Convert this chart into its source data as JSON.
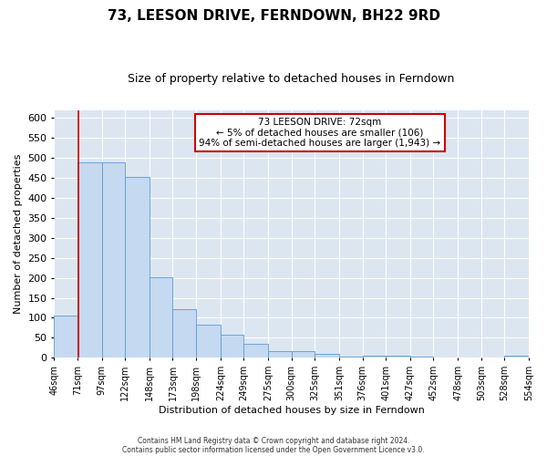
{
  "title": "73, LEESON DRIVE, FERNDOWN, BH22 9RD",
  "subtitle": "Size of property relative to detached houses in Ferndown",
  "xlabel": "Distribution of detached houses by size in Ferndown",
  "ylabel": "Number of detached properties",
  "footnote1": "Contains HM Land Registry data © Crown copyright and database right 2024.",
  "footnote2": "Contains public sector information licensed under the Open Government Licence v3.0.",
  "bin_edges": [
    46,
    71,
    97,
    122,
    148,
    173,
    198,
    224,
    249,
    275,
    300,
    325,
    351,
    376,
    401,
    427,
    452,
    478,
    503,
    528,
    554
  ],
  "bin_labels": [
    "46sqm",
    "71sqm",
    "97sqm",
    "122sqm",
    "148sqm",
    "173sqm",
    "198sqm",
    "224sqm",
    "249sqm",
    "275sqm",
    "300sqm",
    "325sqm",
    "351sqm",
    "376sqm",
    "401sqm",
    "427sqm",
    "452sqm",
    "478sqm",
    "503sqm",
    "528sqm",
    "554sqm"
  ],
  "bar_heights": [
    106,
    490,
    490,
    453,
    202,
    121,
    83,
    57,
    35,
    16,
    17,
    9,
    3,
    5,
    5,
    2,
    1,
    1,
    1,
    5
  ],
  "bar_color": "#c5d9f0",
  "bar_edge_color": "#5b9bd5",
  "vline_x": 72,
  "vline_color": "#cc0000",
  "ylim": [
    0,
    620
  ],
  "yticks": [
    0,
    50,
    100,
    150,
    200,
    250,
    300,
    350,
    400,
    450,
    500,
    550,
    600
  ],
  "annotation_title": "73 LEESON DRIVE: 72sqm",
  "annotation_line1": "← 5% of detached houses are smaller (106)",
  "annotation_line2": "94% of semi-detached houses are larger (1,943) →",
  "annotation_box_facecolor": "#ffffff",
  "annotation_box_edgecolor": "#cc0000",
  "fig_bg_color": "#ffffff",
  "plot_bg_color": "#dce6f1",
  "grid_color": "#ffffff",
  "title_fontsize": 11,
  "subtitle_fontsize": 9,
  "ylabel_fontsize": 8,
  "xlabel_fontsize": 8,
  "ytick_fontsize": 8,
  "xtick_fontsize": 7
}
